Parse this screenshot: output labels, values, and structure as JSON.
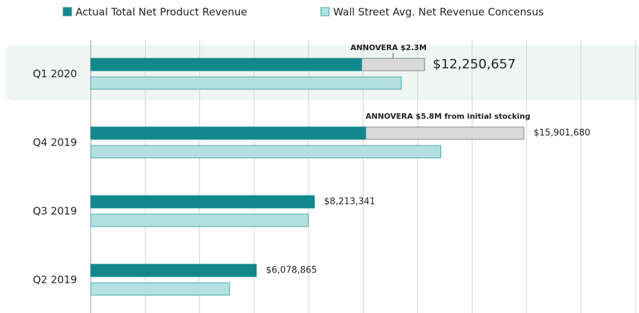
{
  "chart_data": {
    "type": "bar",
    "orientation": "horizontal",
    "categories": [
      "Q1 2020",
      "Q4 2019",
      "Q3 2019",
      "Q2 2019"
    ],
    "highlight": "Q1 2020",
    "series": [
      {
        "name": "Actual Total Net Product Revenue",
        "color": "#11898c",
        "values": [
          12250657,
          15901680,
          8213341,
          6078865
        ],
        "value_labels": [
          "$12,250,657",
          "$15,901,680",
          "$8,213,341",
          "$6,078,865"
        ]
      },
      {
        "name": "Wall Street Avg. Net Revenue Concensus",
        "color": "#b5e0e1",
        "edge": "#3ea6aa",
        "values": [
          11400000,
          12850000,
          7980000,
          5100000
        ]
      }
    ],
    "annotations": [
      {
        "text": "ANNOVERA $2.3M",
        "value": 2300000,
        "category": "Q1 2020",
        "color": "#d9d9d9"
      },
      {
        "text": "ANNOVERA $5.8M from initial stocking",
        "value": 5800000,
        "category": "Q4 2019",
        "color": "#d9d9d9"
      }
    ],
    "xlim": [
      0,
      20000000
    ],
    "xticks": [
      0,
      2000000,
      4000000,
      6000000,
      8000000,
      10000000,
      12000000,
      14000000,
      16000000,
      18000000,
      20000000
    ],
    "grid": true,
    "legend": "top"
  }
}
